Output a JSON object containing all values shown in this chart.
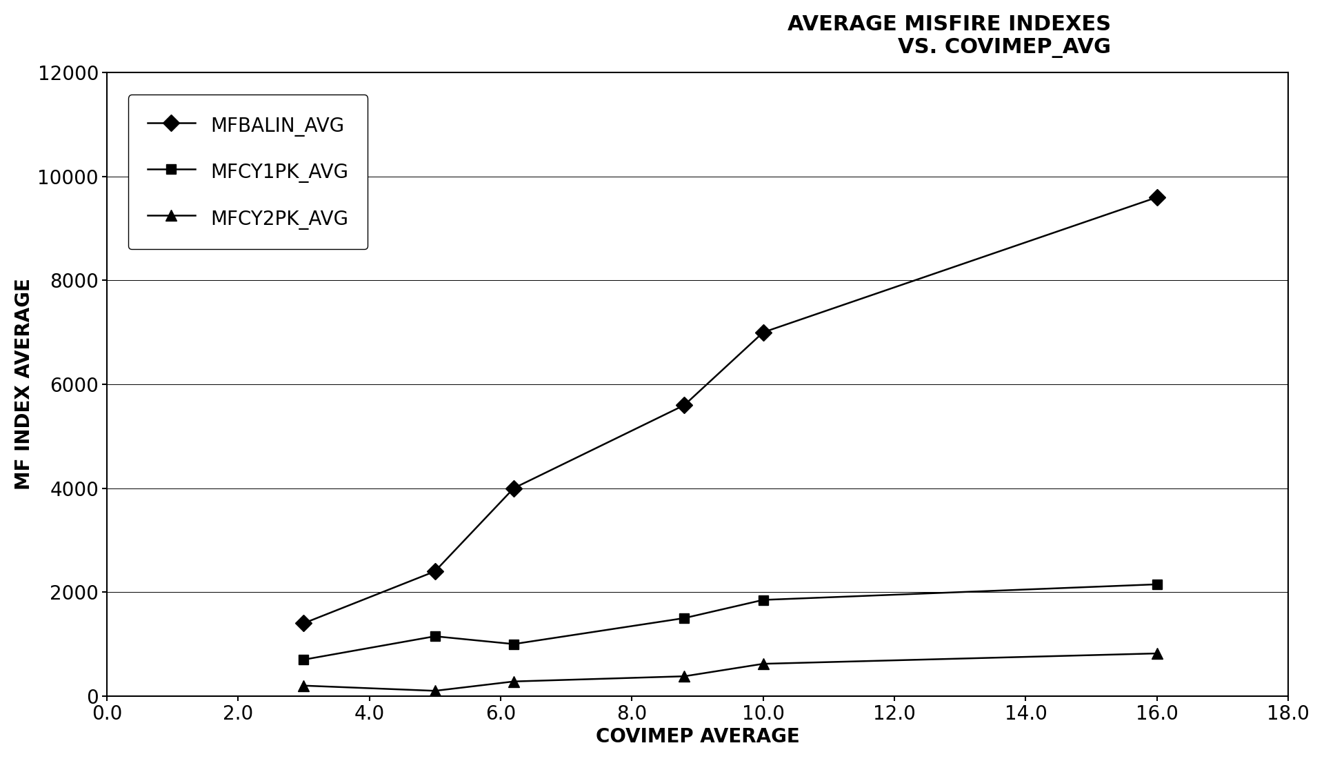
{
  "title": "AVERAGE MISFIRE INDEXES\nVS. COVIMEP_AVG",
  "xlabel": "COVIMEP AVERAGE",
  "ylabel": "MF INDEX AVERAGE",
  "xlim": [
    0.0,
    18.0
  ],
  "ylim": [
    0,
    12000
  ],
  "xticks": [
    0.0,
    2.0,
    4.0,
    6.0,
    8.0,
    10.0,
    12.0,
    14.0,
    16.0,
    18.0
  ],
  "yticks": [
    0,
    2000,
    4000,
    6000,
    8000,
    10000,
    12000
  ],
  "series": [
    {
      "label": "MFBALIN_AVG",
      "x": [
        3.0,
        5.0,
        6.2,
        8.8,
        10.0,
        16.0
      ],
      "y": [
        1400,
        2400,
        4000,
        5600,
        7000,
        9600
      ],
      "marker": "D",
      "markersize": 12,
      "color": "#000000",
      "linewidth": 1.8
    },
    {
      "label": "MFCY1PK_AVG",
      "x": [
        3.0,
        5.0,
        6.2,
        8.8,
        10.0,
        16.0
      ],
      "y": [
        700,
        1150,
        1000,
        1500,
        1850,
        2150
      ],
      "marker": "s",
      "markersize": 10,
      "color": "#000000",
      "linewidth": 1.8
    },
    {
      "label": "MFCY2PK_AVG",
      "x": [
        3.0,
        5.0,
        6.2,
        8.8,
        10.0,
        16.0
      ],
      "y": [
        200,
        100,
        280,
        380,
        620,
        820
      ],
      "marker": "^",
      "markersize": 12,
      "color": "#000000",
      "linewidth": 1.8
    }
  ],
  "background_color": "#ffffff",
  "grid_color": "#000000",
  "title_fontsize": 22,
  "axis_label_fontsize": 20,
  "tick_fontsize": 20,
  "legend_fontsize": 20
}
